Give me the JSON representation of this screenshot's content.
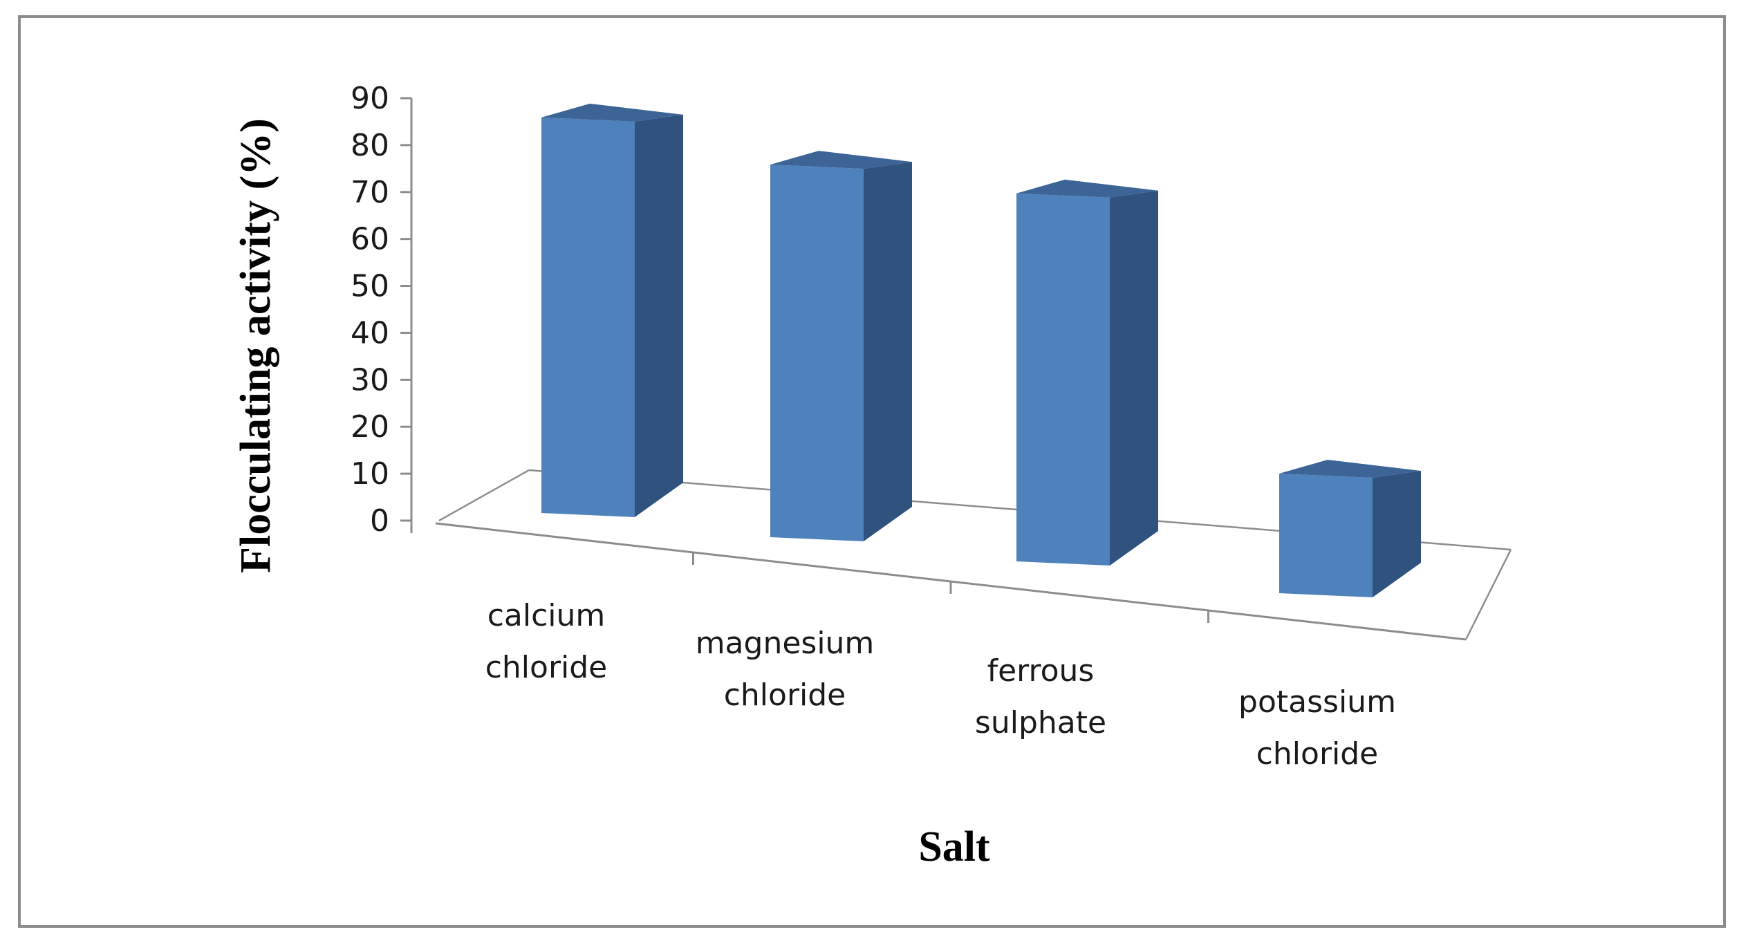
{
  "chart_data": {
    "type": "bar",
    "style": "3d-column",
    "title": "",
    "xlabel": "Salt",
    "ylabel": "Flocculating activity (%)",
    "categories": [
      [
        "calcium",
        "chloride"
      ],
      [
        "magnesium",
        "chloride"
      ],
      [
        "ferrous",
        "sulphate"
      ],
      [
        "potassium",
        "chloride"
      ]
    ],
    "values": [
      86,
      81,
      80,
      26
    ],
    "ylim": [
      0,
      90
    ],
    "yticks": [
      "0",
      "10",
      "20",
      "30",
      "40",
      "50",
      "60",
      "70",
      "80",
      "90"
    ],
    "grid": false,
    "legend": "none",
    "colors": {
      "front": "#4f81bd",
      "side": "#2f527e",
      "top": "#3c6496",
      "axis": "#8c8c8c"
    }
  }
}
